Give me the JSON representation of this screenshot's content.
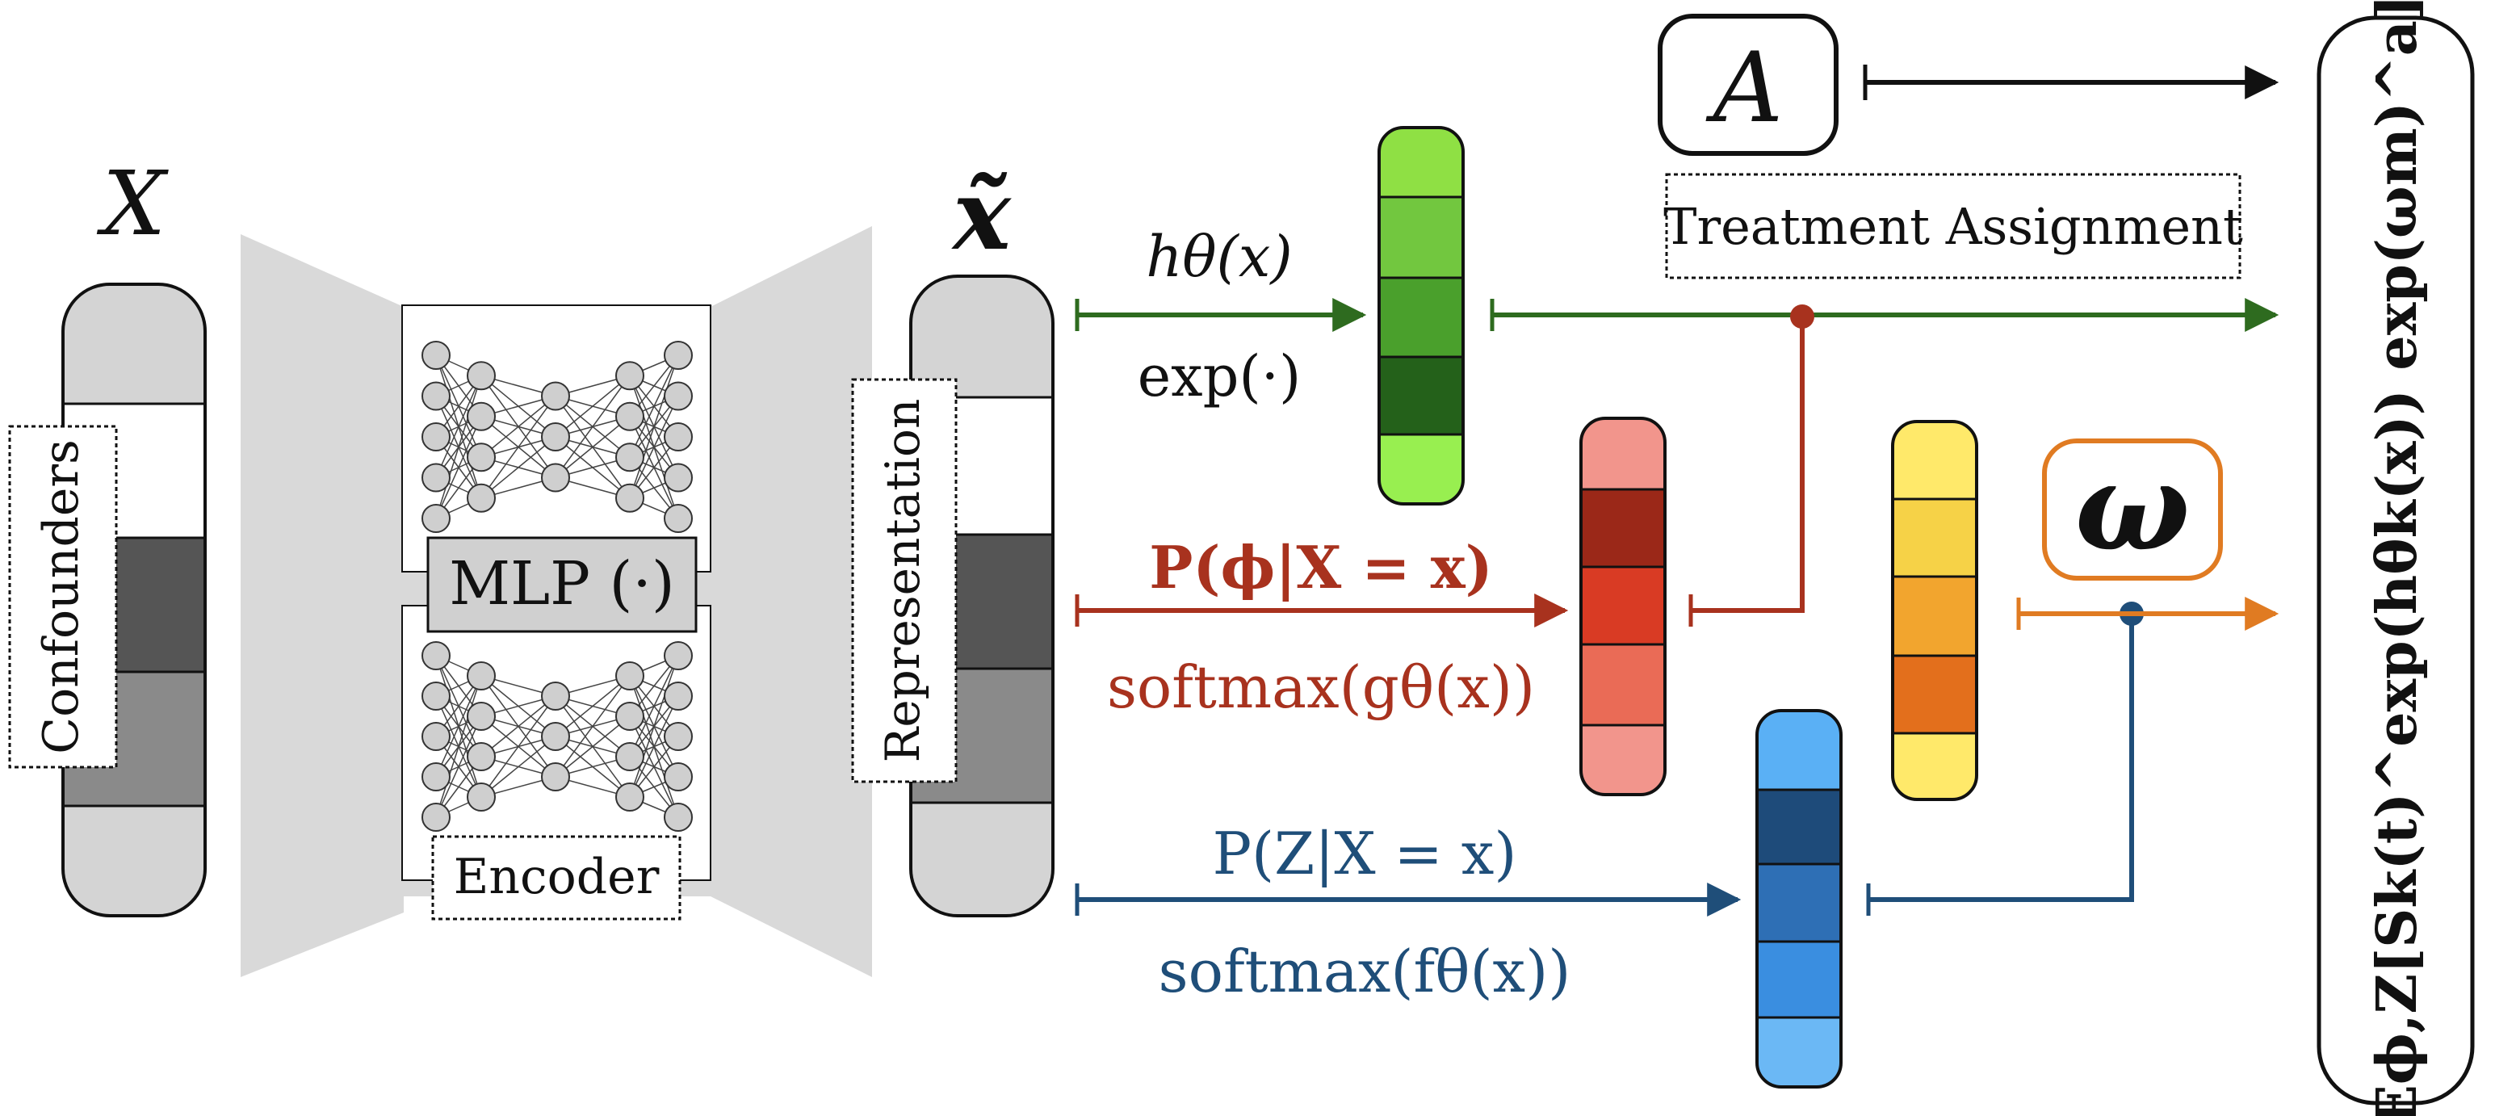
{
  "input": {
    "symbol": "X",
    "label": "Confounders"
  },
  "encoder": {
    "mlp_label": "MLP (·)",
    "encoder_label": "Encoder"
  },
  "representation": {
    "symbol": "x̃",
    "label": "Representation"
  },
  "branches": {
    "hazard": {
      "top": "hθ(x)",
      "bottom": "exp(·)"
    },
    "phi": {
      "top": "P(ϕ|X = x)",
      "bottom": "softmax(gθ(x))"
    },
    "z": {
      "top": "P(Z|X = x)",
      "bottom": "softmax(fθ(x))"
    }
  },
  "treatment": {
    "symbol": "A",
    "label": "Treatment Assignment"
  },
  "omega": {
    "symbol": "ω"
  },
  "output": {
    "expression": "Eϕ,Z[Sk(t)^exp(hθk(x)) exp(ωm)^a]"
  },
  "colors": {
    "green": "#2e6b1f",
    "red": "#a8321e",
    "blue": "#1f4e79",
    "orange": "#e07b22",
    "black": "#111111"
  }
}
